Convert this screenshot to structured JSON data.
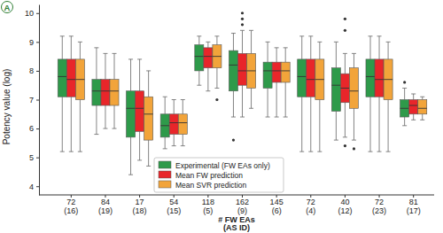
{
  "chart_data": {
    "type": "box",
    "panel_label": "A",
    "x_label": "# FW EAs (AS ID)",
    "y_label": "Potency value (log)",
    "categories": [
      "72 (16)",
      "84 (19)",
      "17 (18)",
      "54 (15)",
      "118 (5)",
      "162 (9)",
      "145 (6)",
      "72 (4)",
      "40 (12)",
      "72 (23)",
      "81 (17)"
    ],
    "ylim": [
      3.7,
      10.3
    ],
    "yticks": [
      4,
      5,
      6,
      7,
      8,
      9,
      10
    ],
    "grid": false,
    "legend": "bottom",
    "series": [
      {
        "name": "Experimental (FW EAs only)",
        "color": "#2e9a4a",
        "min": [
          5.2,
          5.8,
          4.4,
          5.3,
          7.5,
          6.4,
          6.4,
          5.2,
          5.6,
          5.2,
          6.1
        ],
        "q1": [
          7.1,
          6.8,
          5.7,
          5.7,
          8.0,
          7.3,
          7.4,
          7.1,
          6.6,
          7.1,
          6.4
        ],
        "median": [
          7.8,
          7.3,
          6.7,
          6.1,
          8.5,
          8.2,
          8.0,
          7.8,
          7.5,
          7.8,
          6.7
        ],
        "q3": [
          8.4,
          7.7,
          7.3,
          6.5,
          8.9,
          8.7,
          8.3,
          8.4,
          8.1,
          8.4,
          7.0
        ],
        "max": [
          9.2,
          8.8,
          8.4,
          7.1,
          9.2,
          9.3,
          9.0,
          9.2,
          9.0,
          9.2,
          7.4
        ],
        "outliers": [
          [],
          [],
          [],
          [],
          [],
          [
            5.6
          ],
          [],
          [],
          [],
          [],
          [
            7.6
          ]
        ]
      },
      {
        "name": "Mean FW prediction",
        "color": "#e8262a",
        "min": [
          5.2,
          6.0,
          4.9,
          5.4,
          7.3,
          6.4,
          6.4,
          5.2,
          5.7,
          5.2,
          6.3
        ],
        "q1": [
          7.1,
          6.8,
          5.9,
          5.8,
          8.1,
          7.5,
          7.6,
          7.1,
          6.9,
          7.1,
          6.5
        ],
        "median": [
          7.7,
          7.3,
          6.7,
          6.2,
          8.5,
          8.0,
          8.0,
          7.7,
          7.4,
          7.7,
          6.8
        ],
        "q3": [
          8.4,
          7.7,
          7.3,
          6.5,
          8.8,
          8.6,
          8.3,
          8.4,
          7.9,
          8.4,
          7.0
        ],
        "max": [
          9.2,
          8.6,
          8.4,
          7.0,
          9.0,
          9.4,
          8.8,
          9.2,
          8.6,
          9.2,
          7.2
        ],
        "outliers": [
          [],
          [],
          [],
          [],
          [],
          [
            9.6,
            9.8,
            10.0
          ],
          [],
          [],
          [
            9.8,
            9.4,
            5.4
          ],
          [],
          []
        ]
      },
      {
        "name": "Mean SVR prediction",
        "color": "#f2a43a",
        "min": [
          5.2,
          6.0,
          4.7,
          5.4,
          7.4,
          6.7,
          6.4,
          5.2,
          5.6,
          5.2,
          6.3
        ],
        "q1": [
          7.0,
          6.8,
          5.6,
          5.8,
          8.1,
          7.4,
          7.6,
          7.0,
          6.7,
          7.0,
          6.5
        ],
        "median": [
          7.7,
          7.3,
          6.5,
          6.2,
          8.5,
          8.0,
          8.0,
          7.7,
          7.3,
          7.7,
          6.7
        ],
        "q3": [
          8.4,
          7.7,
          7.1,
          6.5,
          8.9,
          8.6,
          8.3,
          8.4,
          8.1,
          8.4,
          7.0
        ],
        "max": [
          9.0,
          8.6,
          8.0,
          7.0,
          9.2,
          9.4,
          8.8,
          9.0,
          8.6,
          9.0,
          7.1
        ],
        "outliers": [
          [],
          [],
          [],
          [],
          [
            7.0
          ],
          [],
          [],
          [],
          [
            5.3
          ],
          [],
          []
        ]
      }
    ]
  }
}
